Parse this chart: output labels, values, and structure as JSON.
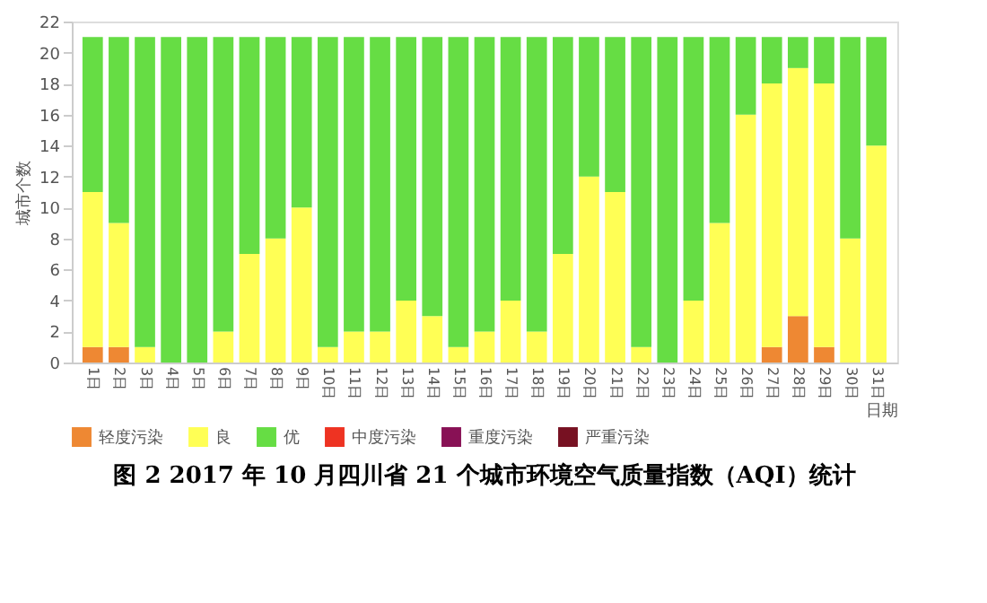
{
  "chart_data": {
    "type": "bar",
    "stacked": true,
    "title": "图 2  2017 年 10 月四川省 21 个城市环境空气质量指数（AQI）统计",
    "xlabel": "日期",
    "ylabel": "城市个数",
    "categories": [
      "1日",
      "2日",
      "3日",
      "4日",
      "5日",
      "6日",
      "7日",
      "8日",
      "9日",
      "10日",
      "11日",
      "12日",
      "13日",
      "14日",
      "15日",
      "16日",
      "17日",
      "18日",
      "19日",
      "20日",
      "21日",
      "22日",
      "23日",
      "24日",
      "25日",
      "26日",
      "27日",
      "28日",
      "29日",
      "30日",
      "31日"
    ],
    "series": [
      {
        "name": "轻度污染",
        "color": "#ee8833",
        "values": [
          1,
          1,
          0,
          0,
          0,
          0,
          0,
          0,
          0,
          0,
          0,
          0,
          0,
          0,
          0,
          0,
          0,
          0,
          0,
          0,
          0,
          0,
          0,
          0,
          0,
          0,
          1,
          3,
          1,
          0,
          0
        ]
      },
      {
        "name": "良",
        "color": "#ffff55",
        "values": [
          10,
          8,
          1,
          0,
          0,
          2,
          7,
          8,
          10,
          1,
          2,
          2,
          4,
          3,
          1,
          2,
          4,
          2,
          7,
          12,
          11,
          1,
          0,
          4,
          9,
          16,
          17,
          16,
          17,
          8,
          14
        ]
      },
      {
        "name": "优",
        "color": "#66dd44",
        "values": [
          10,
          12,
          20,
          21,
          21,
          19,
          14,
          13,
          11,
          20,
          19,
          19,
          17,
          18,
          20,
          19,
          17,
          19,
          14,
          9,
          10,
          20,
          21,
          17,
          12,
          5,
          3,
          2,
          3,
          13,
          7
        ]
      },
      {
        "name": "中度污染",
        "color": "#ee3322",
        "values": [
          0,
          0,
          0,
          0,
          0,
          0,
          0,
          0,
          0,
          0,
          0,
          0,
          0,
          0,
          0,
          0,
          0,
          0,
          0,
          0,
          0,
          0,
          0,
          0,
          0,
          0,
          0,
          0,
          0,
          0,
          0
        ]
      },
      {
        "name": "重度污染",
        "color": "#881155",
        "values": [
          0,
          0,
          0,
          0,
          0,
          0,
          0,
          0,
          0,
          0,
          0,
          0,
          0,
          0,
          0,
          0,
          0,
          0,
          0,
          0,
          0,
          0,
          0,
          0,
          0,
          0,
          0,
          0,
          0,
          0,
          0
        ]
      },
      {
        "name": "严重污染",
        "color": "#771122",
        "values": [
          0,
          0,
          0,
          0,
          0,
          0,
          0,
          0,
          0,
          0,
          0,
          0,
          0,
          0,
          0,
          0,
          0,
          0,
          0,
          0,
          0,
          0,
          0,
          0,
          0,
          0,
          0,
          0,
          0,
          0,
          0
        ]
      }
    ],
    "ylim": [
      0,
      22
    ],
    "yticks": [
      0,
      2,
      4,
      6,
      8,
      10,
      12,
      14,
      16,
      18,
      20,
      22
    ],
    "grid": false,
    "legend": "bottom"
  }
}
